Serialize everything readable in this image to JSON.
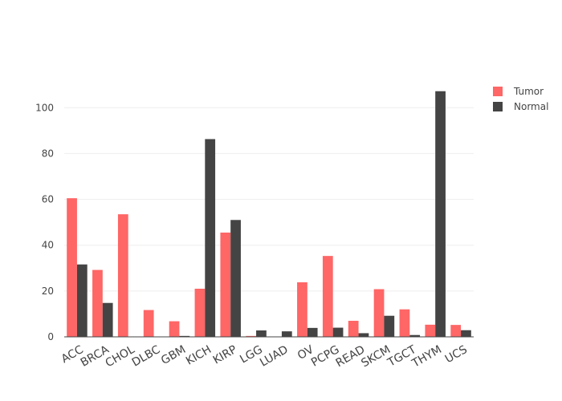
{
  "chart_data": {
    "type": "bar",
    "title": "",
    "xlabel": "",
    "ylabel": "",
    "categories": [
      "ACC",
      "BRCA",
      "CHOL",
      "DLBC",
      "GBM",
      "KICH",
      "KIRP",
      "LGG",
      "LUAD",
      "OV",
      "PCPG",
      "READ",
      "SKCM",
      "TGCT",
      "THYM",
      "UCS"
    ],
    "series": [
      {
        "name": "Tumor",
        "color": "#ff6666",
        "values": [
          60.5,
          29.2,
          53.5,
          11.7,
          6.8,
          21.0,
          45.5,
          0.4,
          0.0,
          23.8,
          35.3,
          7.0,
          20.8,
          12.0,
          5.3,
          5.2
        ]
      },
      {
        "name": "Normal",
        "color": "#444444",
        "values": [
          31.6,
          14.8,
          0.0,
          0.0,
          0.4,
          86.3,
          51.0,
          2.8,
          2.4,
          3.9,
          4.0,
          1.6,
          9.2,
          0.8,
          107.2,
          2.9
        ]
      }
    ],
    "ylim": [
      0,
      112
    ],
    "yticks": [
      0,
      20,
      40,
      60,
      80,
      100
    ],
    "grid": true,
    "legend": "top-right"
  }
}
